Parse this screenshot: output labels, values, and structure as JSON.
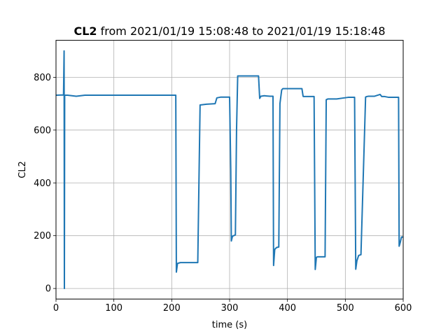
{
  "chart_data": {
    "type": "line",
    "title_bold": "CL2",
    "title_rest": " from 2021/01/19 15:08:48 to 2021/01/19 15:18:48",
    "xlabel": "time (s)",
    "ylabel": "CL2",
    "xlim": [
      0,
      600
    ],
    "ylim": [
      -40,
      940
    ],
    "xticks": [
      0,
      100,
      200,
      300,
      400,
      500,
      600
    ],
    "yticks": [
      0,
      200,
      400,
      600,
      800
    ],
    "grid": true,
    "line_color": "#1f77b4",
    "series": [
      {
        "x": [
          0,
          13,
          14,
          14.5,
          15,
          20,
          35,
          50,
          100,
          150,
          205,
          207,
          208,
          210,
          215,
          245,
          247,
          249,
          260,
          275,
          278,
          285,
          300,
          302,
          303,
          305,
          310,
          312,
          314,
          325,
          340,
          350,
          352,
          354,
          360,
          370,
          375,
          376,
          378,
          381,
          385,
          387,
          390,
          392,
          395,
          405,
          425,
          427,
          428,
          440,
          446,
          447,
          448,
          450,
          452,
          460,
          465,
          467,
          470,
          482,
          485,
          495,
          505,
          515,
          516,
          518,
          520,
          523,
          527,
          535,
          537,
          540,
          550,
          560,
          563,
          568,
          575,
          592,
          593,
          595,
          597,
          600
        ],
        "y": [
          732,
          733,
          900,
          0,
          732,
          732,
          728,
          732,
          732,
          732,
          732,
          732,
          62,
          95,
          98,
          98,
          400,
          695,
          698,
          700,
          722,
          725,
          725,
          450,
          180,
          198,
          203,
          600,
          805,
          805,
          805,
          805,
          720,
          728,
          730,
          728,
          728,
          87,
          148,
          155,
          157,
          700,
          752,
          757,
          757,
          757,
          757,
          728,
          727,
          727,
          727,
          400,
          72,
          118,
          120,
          120,
          120,
          715,
          718,
          718,
          718,
          721,
          724,
          724,
          724,
          73,
          105,
          125,
          128,
          725,
          727,
          728,
          728,
          735,
          727,
          727,
          724,
          724,
          160,
          175,
          195,
          195
        ]
      }
    ]
  }
}
